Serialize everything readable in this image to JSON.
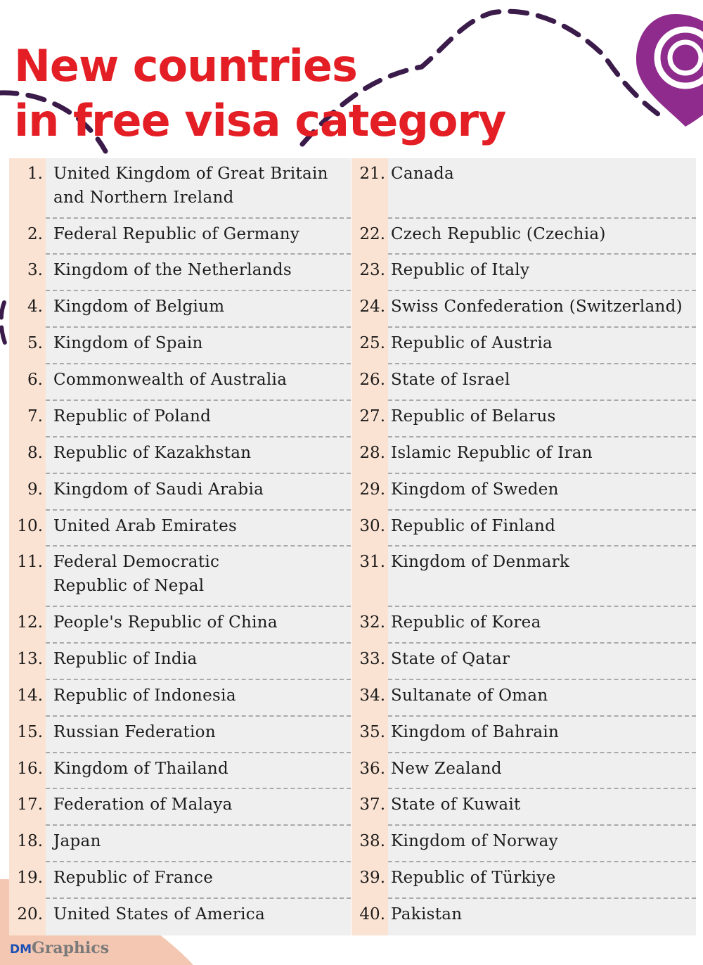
{
  "title_lines": [
    "New countries",
    "in free visa category"
  ],
  "brand": {
    "prefix": "DM",
    "suffix": "Graphics"
  },
  "colors": {
    "title": "#e31e24",
    "number_column": "#fbe3d3",
    "name_column": "#efefef",
    "pin": "#8e2b8c",
    "divider": "#a9a9a9"
  },
  "icons": {
    "pin": "location-pin-icon"
  },
  "left_column": [
    {
      "num": "1.",
      "name": "United Kingdom of Great Britain\nand Northern Ireland"
    },
    {
      "num": "2.",
      "name": "Federal Republic of Germany"
    },
    {
      "num": "3.",
      "name": "Kingdom of the Netherlands"
    },
    {
      "num": "4.",
      "name": "Kingdom of Belgium"
    },
    {
      "num": "5.",
      "name": "Kingdom of Spain"
    },
    {
      "num": "6.",
      "name": "Commonwealth of Australia"
    },
    {
      "num": "7.",
      "name": "Republic of Poland"
    },
    {
      "num": "8.",
      "name": "Republic of Kazakhstan"
    },
    {
      "num": "9.",
      "name": "Kingdom of Saudi Arabia"
    },
    {
      "num": "10.",
      "name": "United Arab Emirates"
    },
    {
      "num": "11.",
      "name": "Federal Democratic\nRepublic of Nepal"
    },
    {
      "num": "12.",
      "name": "People's Republic of China"
    },
    {
      "num": "13.",
      "name": "Republic of India"
    },
    {
      "num": "14.",
      "name": "Republic of Indonesia"
    },
    {
      "num": "15.",
      "name": "Russian Federation"
    },
    {
      "num": "16.",
      "name": "Kingdom of Thailand"
    },
    {
      "num": "17.",
      "name": "Federation of Malaya"
    },
    {
      "num": "18.",
      "name": "Japan"
    },
    {
      "num": "19.",
      "name": "Republic of France"
    },
    {
      "num": "20.",
      "name": "United States of America"
    }
  ],
  "right_column": [
    {
      "num": "21.",
      "name": "Canada"
    },
    {
      "num": "22.",
      "name": "Czech Republic (Czechia)"
    },
    {
      "num": "23.",
      "name": "Republic of Italy"
    },
    {
      "num": "24.",
      "name": "Swiss Confederation (Switzerland)"
    },
    {
      "num": "25.",
      "name": "Republic of Austria"
    },
    {
      "num": "26.",
      "name": "State of Israel"
    },
    {
      "num": "27.",
      "name": "Republic of Belarus"
    },
    {
      "num": "28.",
      "name": "Islamic Republic of Iran"
    },
    {
      "num": "29.",
      "name": "Kingdom of Sweden"
    },
    {
      "num": "30.",
      "name": "Republic of Finland"
    },
    {
      "num": "31.",
      "name": "Kingdom of Denmark"
    },
    {
      "num": "32.",
      "name": "Republic of Korea"
    },
    {
      "num": "33.",
      "name": "State of Qatar"
    },
    {
      "num": "34.",
      "name": "Sultanate of Oman"
    },
    {
      "num": "35.",
      "name": "Kingdom of Bahrain"
    },
    {
      "num": "36.",
      "name": "New Zealand"
    },
    {
      "num": "37.",
      "name": "State of Kuwait"
    },
    {
      "num": "38.",
      "name": "Kingdom of Norway"
    },
    {
      "num": "39.",
      "name": "Republic of Türkiye"
    },
    {
      "num": "40.",
      "name": "Pakistan"
    }
  ]
}
